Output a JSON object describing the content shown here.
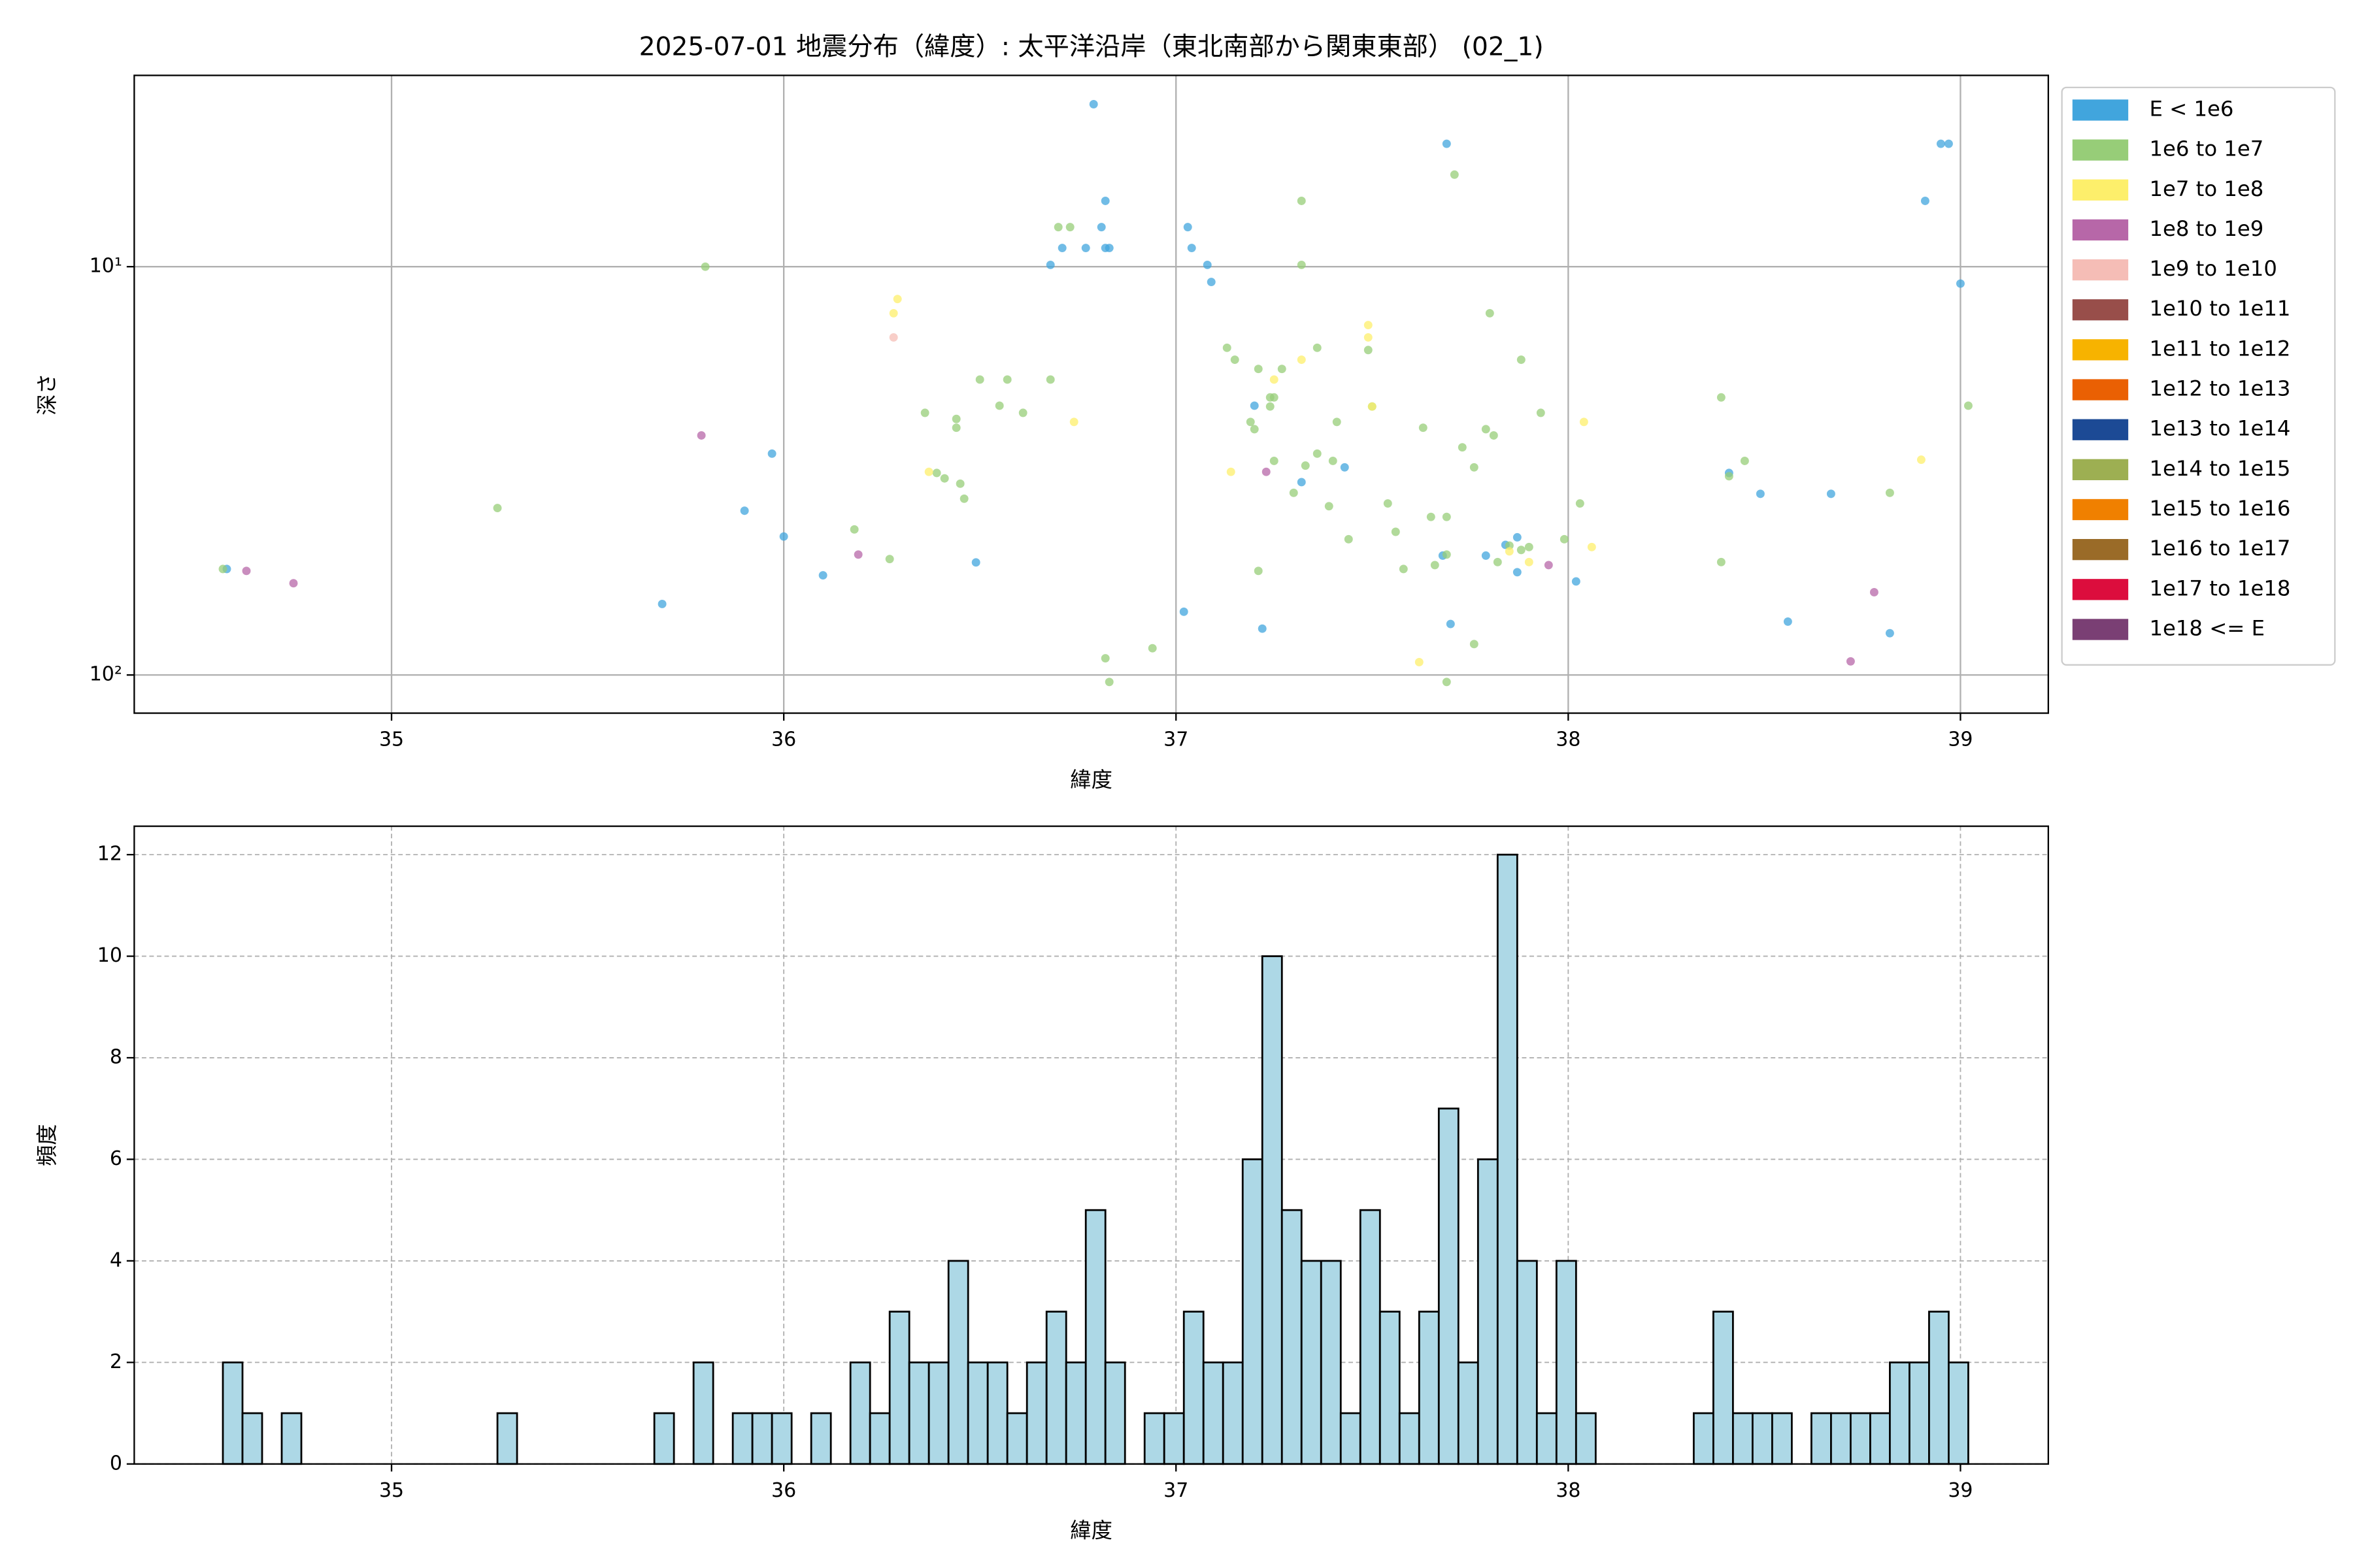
{
  "chart_data": [
    {
      "type": "scatter",
      "title": "2025-07-01 地震分布（緯度）: 太平洋沿岸（東北南部から関東東部） (02_1)",
      "xlabel": "緯度",
      "ylabel": "深さ",
      "xlim": [
        34.344,
        39.224
      ],
      "ylim": [
        124,
        3.4
      ],
      "yscale": "log",
      "xticks": [
        35,
        36,
        37,
        38,
        39
      ],
      "yticks": [
        {
          "value": 10,
          "label": "10¹"
        },
        {
          "value": 100,
          "label": "10²"
        }
      ],
      "grid": "solid",
      "legend": "outside upper right",
      "series": [
        {
          "name": "E < 1e6",
          "color": "#41a5dd",
          "x": [
            34.58,
            36.79,
            37.69,
            38.95,
            38.97,
            38.91,
            39.0,
            36.82,
            36.81,
            36.71,
            36.77,
            36.82,
            36.83,
            36.68,
            37.03,
            37.04,
            37.08,
            37.09,
            35.97,
            35.9,
            36.0,
            35.69,
            36.1,
            36.49,
            37.2,
            37.32,
            37.43,
            37.22,
            37.02,
            37.7,
            37.68,
            37.79,
            37.84,
            37.87,
            37.87,
            38.02,
            38.41,
            38.49,
            38.67,
            38.56,
            38.82
          ],
          "y": [
            55,
            4.0,
            5.0,
            5.0,
            5.0,
            6.9,
            11,
            6.9,
            8.0,
            9.0,
            9.0,
            9.0,
            9.0,
            9.9,
            8.0,
            9.0,
            9.9,
            10.9,
            28.7,
            39.6,
            45.8,
            67,
            57,
            53,
            21.9,
            33.7,
            31,
            77,
            70,
            75,
            51,
            51,
            48,
            46,
            56,
            59,
            32,
            36,
            36,
            74,
            79
          ]
        },
        {
          "name": "1e6 to 1e7",
          "color": "#97cd78",
          "x": [
            34.57,
            35.27,
            35.8,
            36.18,
            36.27,
            36.36,
            36.39,
            36.41,
            36.44,
            36.44,
            36.45,
            36.46,
            36.5,
            36.55,
            36.57,
            36.61,
            36.68,
            36.7,
            36.73,
            36.82,
            36.83,
            36.94,
            37.13,
            37.15,
            37.21,
            37.24,
            37.25,
            37.24,
            37.27,
            37.19,
            37.2,
            37.25,
            37.3,
            37.33,
            37.36,
            37.36,
            37.39,
            37.4,
            37.41,
            37.44,
            37.32,
            37.32,
            37.49,
            37.5,
            37.54,
            37.56,
            37.58,
            37.63,
            37.65,
            37.66,
            37.69,
            37.69,
            37.71,
            37.69,
            37.73,
            37.76,
            37.79,
            37.8,
            37.81,
            37.76,
            37.82,
            37.85,
            37.88,
            37.9,
            37.88,
            37.93,
            37.99,
            38.03,
            38.39,
            38.39,
            38.41,
            38.45,
            38.82,
            39.02,
            37.21
          ],
          "y": [
            55,
            39,
            10,
            44,
            52,
            22.8,
            32,
            33,
            23.6,
            24.8,
            34,
            37,
            18.9,
            21.9,
            18.9,
            22.8,
            18.9,
            8.0,
            8.0,
            91,
            104,
            86,
            15.8,
            16.9,
            17.8,
            20.9,
            20.9,
            22,
            17.8,
            24,
            25,
            29.9,
            35.8,
            30.7,
            28.7,
            15.8,
            38.6,
            29.9,
            24,
            46.5,
            6.9,
            9.9,
            16,
            22,
            38,
            44.6,
            55,
            24.8,
            41,
            53.8,
            41,
            50.7,
            5.95,
            104,
            27.7,
            31,
            25,
            13,
            25.9,
            84,
            52.9,
            48.2,
            49.4,
            48.6,
            16.9,
            22.8,
            46.5,
            38,
            20.9,
            52.9,
            32.6,
            29.9,
            35.8,
            21.9,
            55.6
          ]
        },
        {
          "name": "1e7 to 1e8",
          "color": "#fdef6b",
          "x": [
            36.29,
            36.28,
            36.74,
            36.37,
            37.14,
            37.32,
            37.49,
            37.49,
            37.25,
            37.62,
            37.85,
            37.9,
            38.04,
            38.06,
            38.9,
            37.5
          ],
          "y": [
            12,
            13,
            24,
            31.8,
            31.8,
            16.9,
            13.9,
            14.9,
            18.9,
            93,
            49.8,
            52.9,
            24,
            48.6,
            29.7,
            22
          ]
        },
        {
          "name": "1e8 to 1e9",
          "color": "#b767a8",
          "x": [
            34.63,
            34.75,
            35.79,
            36.19,
            37.23,
            37.95,
            38.78,
            38.72
          ],
          "y": [
            55.6,
            59.6,
            25.9,
            50.7,
            31.8,
            53.8,
            62.7,
            92.6
          ]
        },
        {
          "name": "1e9 to 1e10",
          "color": "#f5bdb6",
          "x": [
            36.28
          ],
          "y": [
            14.9
          ]
        },
        {
          "name": "1e10 to 1e11",
          "color": "#984e4a",
          "x": [],
          "y": []
        },
        {
          "name": "1e11 to 1e12",
          "color": "#f7b300",
          "x": [],
          "y": []
        },
        {
          "name": "1e12 to 1e13",
          "color": "#ea6003",
          "x": [],
          "y": []
        },
        {
          "name": "1e13 to 1e14",
          "color": "#1c4a95",
          "x": [],
          "y": []
        },
        {
          "name": "1e14 to 1e15",
          "color": "#9daf52",
          "x": [],
          "y": []
        },
        {
          "name": "1e15 to 1e16",
          "color": "#f08000",
          "x": [],
          "y": []
        },
        {
          "name": "1e16 to 1e17",
          "color": "#9a6b28",
          "x": [],
          "y": []
        },
        {
          "name": "1e17 to 1e18",
          "color": "#dc0d3d",
          "x": [],
          "y": []
        },
        {
          "name": "1e18 <= E",
          "color": "#7a3f74",
          "x": [],
          "y": []
        }
      ]
    },
    {
      "type": "histogram",
      "xlabel": "緯度",
      "ylabel": "頻度",
      "xlim": [
        34.344,
        39.224
      ],
      "ylim": [
        0,
        12.56
      ],
      "xticks": [
        35,
        36,
        37,
        38,
        39
      ],
      "yticks": [
        0,
        2,
        4,
        6,
        8,
        10,
        12
      ],
      "grid": "dashed",
      "color": "#add8e6",
      "edgecolor": "#000000",
      "bins": [
        34.57,
        34.62,
        34.67,
        34.72,
        34.77,
        34.82,
        34.87,
        34.92,
        34.97,
        35.02,
        35.07,
        35.12,
        35.17,
        35.22,
        35.27,
        35.32,
        35.37,
        35.42,
        35.47,
        35.52,
        35.57,
        35.62,
        35.67,
        35.72,
        35.77,
        35.82,
        35.87,
        35.92,
        35.97,
        36.02,
        36.07,
        36.12,
        36.17,
        36.22,
        36.27,
        36.32,
        36.37,
        36.42,
        36.47,
        36.52,
        36.57,
        36.62,
        36.67,
        36.72,
        36.77,
        36.82,
        36.87,
        36.92,
        36.97,
        37.02,
        37.07,
        37.12,
        37.17,
        37.22,
        37.27,
        37.32,
        37.37,
        37.42,
        37.47,
        37.52,
        37.57,
        37.62,
        37.67,
        37.72,
        37.77,
        37.82,
        37.87,
        37.92,
        37.97,
        38.02,
        38.07,
        38.12,
        38.17,
        38.22,
        38.27,
        38.32,
        38.37,
        38.42,
        38.47,
        38.52,
        38.57,
        38.62,
        38.67,
        38.72,
        38.77,
        38.82,
        38.87,
        38.92,
        38.97,
        39.02
      ],
      "values": [
        2,
        1,
        0,
        1,
        0,
        0,
        0,
        0,
        0,
        0,
        0,
        0,
        0,
        0,
        1,
        0,
        0,
        0,
        0,
        0,
        0,
        0,
        1,
        0,
        2,
        0,
        1,
        1,
        1,
        0,
        1,
        0,
        2,
        1,
        3,
        2,
        2,
        4,
        2,
        2,
        1,
        2,
        3,
        2,
        5,
        2,
        0,
        1,
        1,
        3,
        2,
        2,
        6,
        10,
        5,
        4,
        4,
        1,
        5,
        3,
        1,
        3,
        7,
        2,
        6,
        12,
        4,
        1,
        4,
        1,
        0,
        0,
        0,
        0,
        0,
        1,
        3,
        1,
        1,
        1,
        0,
        1,
        1,
        1,
        1,
        2,
        2,
        3,
        2
      ]
    }
  ]
}
